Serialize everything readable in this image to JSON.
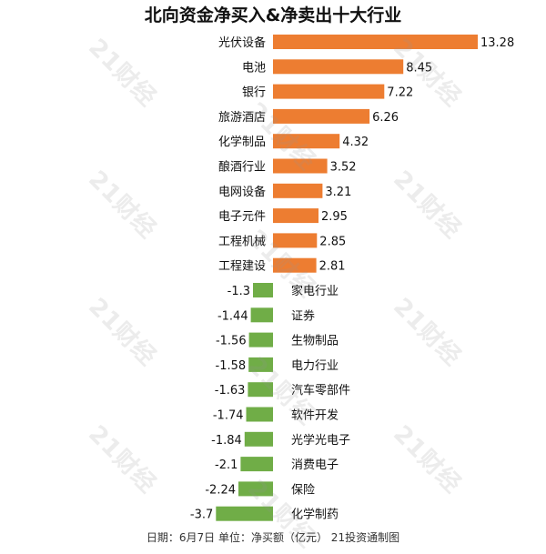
{
  "watermark": "21财经",
  "colors": {
    "positive": "#ED7D31",
    "negative": "#70AD47",
    "text": "#111111"
  },
  "chart_data": {
    "type": "bar",
    "title": "北向资金净买入&净卖出十大行业",
    "orientation": "horizontal",
    "note": "日期：6月7日 单位：净买额（亿元） 21投资通制图",
    "categories": [
      "光伏设备",
      "电池",
      "银行",
      "旅游酒店",
      "化学制品",
      "酿酒行业",
      "电网设备",
      "电子元件",
      "工程机械",
      "工程建设",
      "家电行业",
      "证券",
      "生物制品",
      "电力行业",
      "汽车零部件",
      "软件开发",
      "光学光电子",
      "消费电子",
      "保险",
      "化学制药"
    ],
    "values": [
      13.28,
      8.45,
      7.22,
      6.26,
      4.32,
      3.52,
      3.21,
      2.95,
      2.85,
      2.81,
      -1.3,
      -1.44,
      -1.56,
      -1.58,
      -1.63,
      -1.74,
      -1.84,
      -2.1,
      -2.24,
      -3.7
    ],
    "value_labels": [
      "13.28",
      "8.45",
      "7.22",
      "6.26",
      "4.32",
      "3.52",
      "3.21",
      "2.95",
      "2.85",
      "2.81",
      "-1.3",
      "-1.44",
      "-1.56",
      "-1.58",
      "-1.63",
      "-1.74",
      "-1.84",
      "-2.1",
      "-2.24",
      "-3.7"
    ],
    "xlim": [
      -3.7,
      13.28
    ]
  }
}
